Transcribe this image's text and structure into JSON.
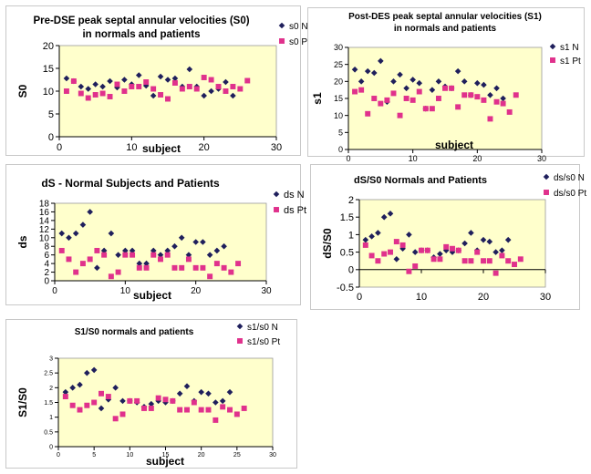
{
  "colors": {
    "plot_background": "#ffffcc",
    "series_n": "#1f1f5c",
    "series_pt": "#e0318c",
    "axis": "#000000"
  },
  "chart_data": [
    {
      "type": "scatter",
      "title_lines": [
        "Pre-DSE peak septal annular velocities (S0)",
        "in normals and patients"
      ],
      "xlabel": "subject",
      "ylabel": "S0",
      "xlim": [
        0,
        30
      ],
      "xticks": [
        0,
        10,
        20,
        30
      ],
      "ylim": [
        0,
        20
      ],
      "yticks": [
        0,
        5,
        10,
        15,
        20
      ],
      "grid": false,
      "legend_position": "top-right",
      "series": [
        {
          "name": "s0 N",
          "marker": "diamond",
          "x": [
            1,
            2,
            3,
            4,
            5,
            6,
            7,
            8,
            9,
            10,
            11,
            12,
            13,
            14,
            15,
            16,
            17,
            18,
            19,
            20,
            21,
            22,
            23,
            24
          ],
          "y": [
            12.8,
            12.2,
            11,
            10.5,
            11.5,
            11,
            12.2,
            10.8,
            12.5,
            11.5,
            13.5,
            11.2,
            9,
            13.2,
            12.5,
            12.8,
            11,
            14.8,
            11,
            9,
            10,
            10.5,
            12,
            9
          ]
        },
        {
          "name": "s0 Pt",
          "marker": "square",
          "x": [
            1,
            2,
            3,
            4,
            5,
            6,
            7,
            8,
            9,
            10,
            11,
            12,
            13,
            14,
            15,
            16,
            17,
            18,
            19,
            20,
            21,
            22,
            23,
            24,
            25,
            26
          ],
          "y": [
            10,
            12.2,
            9.5,
            8.5,
            9.2,
            9.5,
            8.8,
            11.5,
            10,
            11,
            11,
            12,
            10.5,
            9.2,
            8.3,
            11.8,
            10.5,
            11,
            10.5,
            13,
            12.5,
            11,
            10,
            11,
            10.5,
            12.3
          ]
        }
      ]
    },
    {
      "type": "scatter",
      "title_lines": [
        "Post-DES peak septal annular velocities (S1)",
        "in normals and patients"
      ],
      "xlabel": "subject",
      "ylabel": "s1",
      "xlim": [
        0,
        30
      ],
      "xticks": [
        0,
        10,
        20,
        30
      ],
      "ylim": [
        0,
        30
      ],
      "yticks": [
        0,
        5,
        10,
        15,
        20,
        25,
        30
      ],
      "grid": false,
      "legend_position": "right",
      "series": [
        {
          "name": "s1 N",
          "marker": "diamond",
          "x": [
            1,
            2,
            3,
            4,
            5,
            6,
            7,
            8,
            9,
            10,
            11,
            12,
            13,
            14,
            15,
            16,
            17,
            18,
            19,
            20,
            21,
            22,
            23,
            24
          ],
          "y": [
            23.5,
            20,
            23,
            22.5,
            26,
            14,
            20,
            22,
            18,
            20.5,
            19.5,
            12,
            17.5,
            20,
            18.5,
            18,
            23,
            20,
            16,
            19.5,
            19,
            16,
            18,
            15
          ]
        },
        {
          "name": "s1 Pt",
          "marker": "square",
          "x": [
            1,
            2,
            3,
            4,
            5,
            6,
            7,
            8,
            9,
            10,
            11,
            12,
            13,
            14,
            15,
            16,
            17,
            18,
            19,
            20,
            21,
            22,
            23,
            24,
            25,
            26
          ],
          "y": [
            17,
            17.5,
            10.5,
            15,
            13.5,
            14.5,
            16.5,
            10,
            15,
            14.5,
            17,
            12,
            12,
            15,
            18,
            18,
            12.5,
            16,
            16,
            15.5,
            14.5,
            9,
            14,
            13.5,
            11,
            16
          ]
        }
      ]
    },
    {
      "type": "scatter",
      "title_lines": [
        "dS - Normal Subjects and Patients"
      ],
      "xlabel": "subject",
      "ylabel": "ds",
      "xlim": [
        0,
        30
      ],
      "xticks": [
        0,
        10,
        20,
        30
      ],
      "ylim": [
        0,
        18
      ],
      "yticks": [
        0,
        2,
        4,
        6,
        8,
        10,
        12,
        14,
        16,
        18
      ],
      "grid": false,
      "legend_position": "top-right",
      "series": [
        {
          "name": "ds N",
          "marker": "diamond",
          "x": [
            1,
            2,
            3,
            4,
            5,
            6,
            7,
            8,
            9,
            10,
            11,
            12,
            13,
            14,
            15,
            16,
            17,
            18,
            19,
            20,
            21,
            22,
            23,
            24
          ],
          "y": [
            11,
            10,
            11,
            13,
            16,
            3,
            7,
            11,
            6,
            7,
            7,
            4,
            4,
            7,
            6,
            7,
            8,
            10,
            6,
            9,
            9,
            6,
            7,
            8
          ]
        },
        {
          "name": "ds Pt",
          "marker": "square",
          "x": [
            1,
            2,
            3,
            4,
            5,
            6,
            7,
            8,
            9,
            10,
            11,
            12,
            13,
            14,
            15,
            16,
            17,
            18,
            19,
            20,
            21,
            22,
            23,
            24,
            25,
            26
          ],
          "y": [
            7,
            5,
            2,
            4,
            5,
            7,
            6,
            1,
            2,
            6,
            6,
            3,
            3,
            6,
            5,
            6,
            3,
            3,
            5,
            3,
            3,
            1,
            4,
            3,
            2,
            4
          ]
        }
      ]
    },
    {
      "type": "scatter",
      "title_lines": [
        "dS/S0 Normals and Patients"
      ],
      "xlabel": "",
      "ylabel": "dS/S0",
      "xlim": [
        0,
        30
      ],
      "xticks": [
        0,
        10,
        20,
        30
      ],
      "ylim": [
        -0.5,
        2
      ],
      "yticks": [
        -0.5,
        0,
        0.5,
        1,
        1.5,
        2
      ],
      "grid": false,
      "legend_position": "top-right",
      "series": [
        {
          "name": "ds/s0 N",
          "marker": "diamond",
          "x": [
            1,
            2,
            3,
            4,
            5,
            6,
            7,
            8,
            9,
            10,
            11,
            12,
            13,
            14,
            15,
            16,
            17,
            18,
            19,
            20,
            21,
            22,
            23,
            24
          ],
          "y": [
            0.85,
            0.95,
            1.05,
            1.5,
            1.6,
            0.3,
            0.6,
            1.0,
            0.5,
            0.55,
            0.55,
            0.35,
            0.45,
            0.55,
            0.5,
            0.55,
            0.75,
            1.05,
            0.55,
            0.85,
            0.8,
            0.5,
            0.55,
            0.85
          ]
        },
        {
          "name": "ds/s0 Pt",
          "marker": "square",
          "x": [
            1,
            2,
            3,
            4,
            5,
            6,
            7,
            8,
            9,
            10,
            11,
            12,
            13,
            14,
            15,
            16,
            17,
            18,
            19,
            20,
            21,
            22,
            23,
            24,
            25,
            26
          ],
          "y": [
            0.7,
            0.4,
            0.25,
            0.45,
            0.5,
            0.8,
            0.7,
            -0.05,
            0.1,
            0.55,
            0.55,
            0.3,
            0.3,
            0.65,
            0.6,
            0.55,
            0.25,
            0.25,
            0.5,
            0.25,
            0.25,
            -0.1,
            0.4,
            0.25,
            0.15,
            0.3
          ]
        }
      ]
    },
    {
      "type": "scatter",
      "title_lines": [
        "S1/S0 normals and patients"
      ],
      "xlabel": "subject",
      "ylabel": "S1/S0",
      "xlim": [
        0,
        30
      ],
      "xticks": [
        0,
        5,
        10,
        15,
        20,
        25,
        30
      ],
      "ylim": [
        0,
        3
      ],
      "yticks": [
        0,
        0.5,
        1,
        1.5,
        2,
        2.5,
        3
      ],
      "grid": false,
      "legend_position": "top-right",
      "series": [
        {
          "name": "s1/s0 N",
          "marker": "diamond",
          "x": [
            1,
            2,
            3,
            4,
            5,
            6,
            7,
            8,
            9,
            10,
            11,
            12,
            13,
            14,
            15,
            16,
            17,
            18,
            19,
            20,
            21,
            22,
            23,
            24
          ],
          "y": [
            1.85,
            2.0,
            2.1,
            2.5,
            2.6,
            1.3,
            1.6,
            2.0,
            1.55,
            1.55,
            1.5,
            1.35,
            1.45,
            1.55,
            1.5,
            1.55,
            1.8,
            2.05,
            1.55,
            1.85,
            1.8,
            1.5,
            1.55,
            1.85
          ]
        },
        {
          "name": "s1/s0 Pt",
          "marker": "square",
          "x": [
            1,
            2,
            3,
            4,
            5,
            6,
            7,
            8,
            9,
            10,
            11,
            12,
            13,
            14,
            15,
            16,
            17,
            18,
            19,
            20,
            21,
            22,
            23,
            24,
            25,
            26
          ],
          "y": [
            1.7,
            1.4,
            1.25,
            1.4,
            1.5,
            1.8,
            1.7,
            0.95,
            1.1,
            1.55,
            1.55,
            1.3,
            1.3,
            1.65,
            1.6,
            1.55,
            1.25,
            1.25,
            1.5,
            1.25,
            1.25,
            0.9,
            1.35,
            1.25,
            1.1,
            1.3
          ]
        }
      ]
    }
  ]
}
